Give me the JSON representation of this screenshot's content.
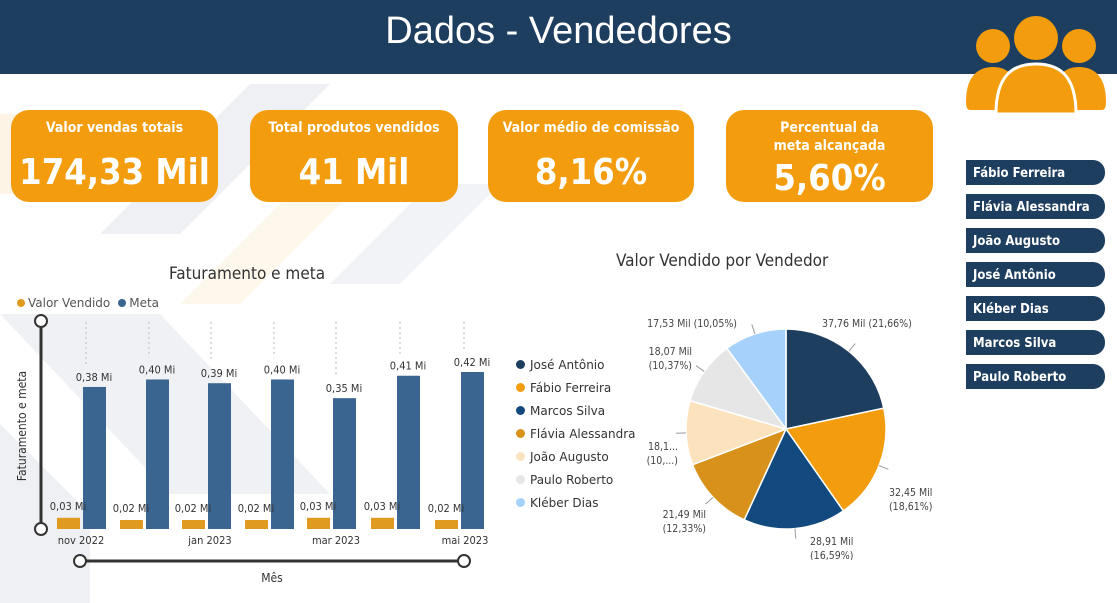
{
  "header": {
    "title": "Dados - Vendedores"
  },
  "kpis": [
    {
      "label": "Valor vendas totais",
      "value": "174,33 Mil"
    },
    {
      "label": "Total produtos vendidos",
      "value": "41 Mil"
    },
    {
      "label": "Valor médio de comissão",
      "value": "8,16%"
    },
    {
      "label": "Percentual da meta alcançada",
      "value": "5,60%"
    }
  ],
  "seller_slicer": {
    "items": [
      "Fábio Ferreira",
      "Flávia Alessandra",
      "João Augusto",
      "José Antônio",
      "Kléber Dias",
      "Marcos Silva",
      "Paulo Roberto"
    ]
  },
  "icons": {
    "header": "people-group-icon"
  },
  "colors": {
    "navy": "#1e3e5f",
    "orange": "#f29c0e",
    "bar_meta": "#3a6590",
    "bar_vendido": "#e09a1f"
  },
  "chart_data": [
    {
      "type": "bar",
      "title": "Faturamento e meta",
      "xlabel": "Mês",
      "ylabel": "Faturamento e meta",
      "legend": "top-left",
      "x_ticks": [
        "nov 2022",
        "jan 2023",
        "mar 2023",
        "mai 2023"
      ],
      "series": [
        {
          "name": "Valor Vendido",
          "color": "#e09a1f",
          "values": [
            0.03,
            0.02,
            0.02,
            0.02,
            0.03,
            0.03,
            0.02
          ],
          "labels": [
            "0,03 Mi",
            "0,02 Mi",
            "0,02 Mi",
            "0,02 Mi",
            "0,03 Mi",
            "0,03 Mi",
            "0,02 Mi"
          ]
        },
        {
          "name": "Meta",
          "color": "#3a6590",
          "values": [
            0.38,
            0.4,
            0.39,
            0.4,
            0.35,
            0.41,
            0.42
          ],
          "labels": [
            "0,38 Mi",
            "0,40 Mi",
            "0,39 Mi",
            "0,40 Mi",
            "0,35 Mi",
            "0,41 Mi",
            "0,42 Mi"
          ]
        }
      ],
      "ylim": [
        0,
        0.42
      ]
    },
    {
      "type": "pie",
      "title": "Valor Vendido por Vendedor",
      "legend": "left",
      "slices": [
        {
          "name": "José Antônio",
          "value": 37.76,
          "label": "37,76 Mil (21,66%)",
          "color": "#1e3e5f"
        },
        {
          "name": "Fábio Ferreira",
          "value": 32.45,
          "label": "32,45 Mil (18,61%)",
          "color": "#f29c0e"
        },
        {
          "name": "Marcos Silva",
          "value": 28.91,
          "label": "28,91 Mil (16,59%)",
          "color": "#124a80"
        },
        {
          "name": "Flávia Alessandra",
          "value": 21.49,
          "label": "21,49 Mil (12,33%)",
          "color": "#d8921c"
        },
        {
          "name": "João Augusto",
          "value": 18.1,
          "label": "18,1... (10,...)",
          "color": "#fce3bd"
        },
        {
          "name": "Paulo Roberto",
          "value": 18.07,
          "label": "18,07 Mil (10,37%)",
          "color": "#e6e6e6"
        },
        {
          "name": "Kléber Dias",
          "value": 17.53,
          "label": "17,53 Mil (10,05%)",
          "color": "#a6d1fb"
        }
      ]
    }
  ]
}
